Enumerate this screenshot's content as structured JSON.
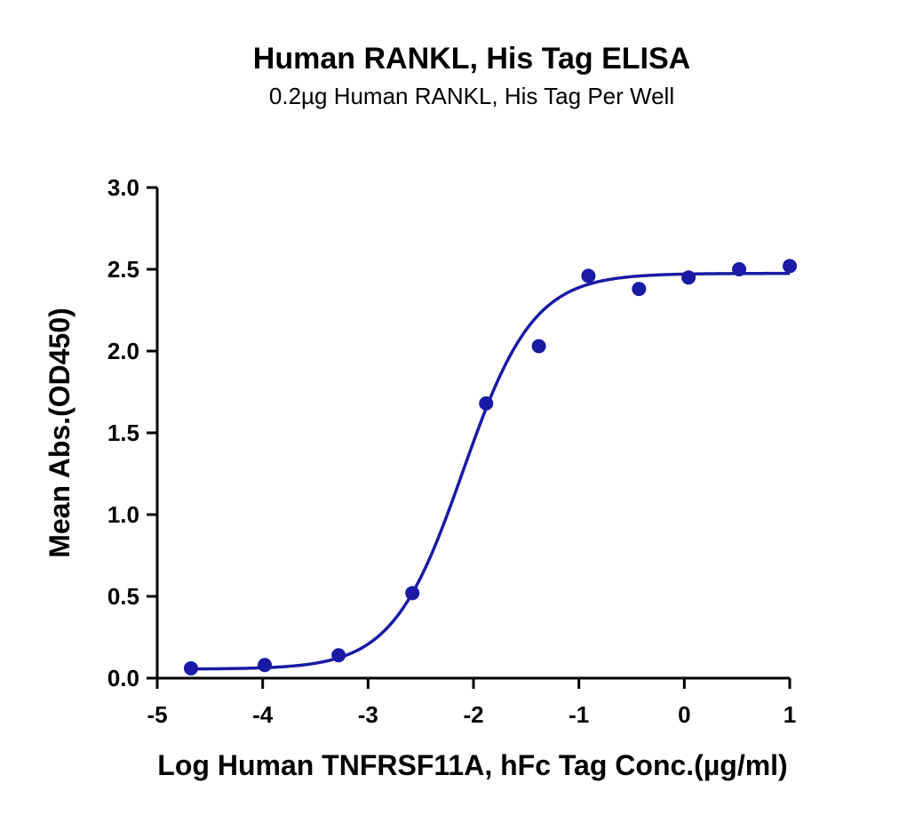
{
  "chart_data": {
    "type": "scatter",
    "title": "Human RANKL, His Tag ELISA",
    "subtitle": "0.2µg Human RANKL, His Tag Per Well",
    "xlabel": "Log Human TNFRSF11A, hFc Tag Conc.(µg/ml)",
    "ylabel": "Mean Abs.(OD450)",
    "xlim": [
      -5,
      1
    ],
    "ylim": [
      0,
      3
    ],
    "x_ticks": [
      -5,
      -4,
      -3,
      -2,
      -1,
      0,
      1
    ],
    "x_tick_labels": [
      "-5",
      "-4",
      "-3",
      "-2",
      "-1",
      "0",
      "1"
    ],
    "y_ticks": [
      0,
      0.5,
      1,
      1.5,
      2,
      2.5,
      3
    ],
    "y_tick_labels": [
      "0.0",
      "0.5",
      "1.0",
      "1.5",
      "2.0",
      "2.5",
      "3.0"
    ],
    "grid": false,
    "legend": "none",
    "color": "#1a1aa6",
    "series": [
      {
        "points": [
          {
            "x": -4.68,
            "y": 0.06
          },
          {
            "x": -3.98,
            "y": 0.08
          },
          {
            "x": -3.28,
            "y": 0.14
          },
          {
            "x": -2.58,
            "y": 0.52
          },
          {
            "x": -1.88,
            "y": 1.68
          },
          {
            "x": -1.38,
            "y": 2.03
          },
          {
            "x": -0.91,
            "y": 2.46
          },
          {
            "x": -0.43,
            "y": 2.38
          },
          {
            "x": 0.04,
            "y": 2.45
          },
          {
            "x": 0.52,
            "y": 2.5
          },
          {
            "x": 1.0,
            "y": 2.52
          }
        ],
        "fit": {
          "model": "4PL",
          "bottom": 0.055,
          "top": 2.475,
          "logEC50": -2.1,
          "hill": 1.3
        }
      }
    ]
  }
}
